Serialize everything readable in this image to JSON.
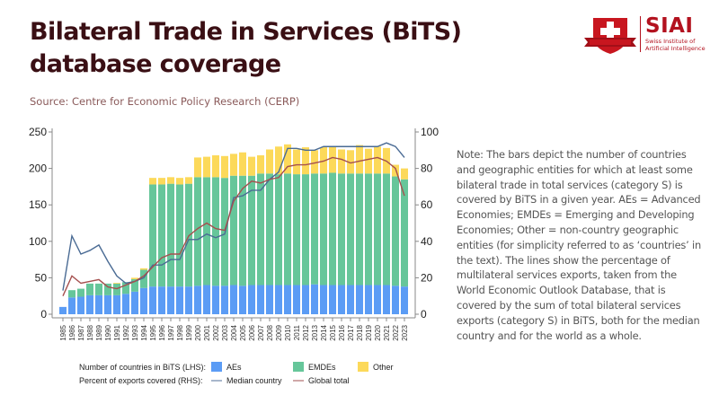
{
  "header": {
    "title": "Bilateral Trade in Services (BiTS) database coverage",
    "source": "Source: Centre for Economic Policy Research (CERP)"
  },
  "logo": {
    "name": "SIAI",
    "subtitle_line1": "Swiss Institute of",
    "subtitle_line2": "Artificial Intelligence",
    "brand_color": "#b3121f"
  },
  "note": "Note: The bars depict the number of countries and geographic entities for which at least some bilateral trade in total services (category S) is covered by BiTS in a given year. AEs = Advanced Economies; EMDEs = Emerging and Developing Economies; Other = non-country geographic entities (for simplicity referred to as ‘countries’ in the text). The lines show the percentage of multilateral services exports, taken from the World Economic Outlook Database, that is covered by the sum of total bilateral services exports (category S) in BiTS, both for the median country and for the world as a whole.",
  "chart_data": {
    "type": "bar",
    "stacked": true,
    "title": "",
    "xlabel": "",
    "ylabel_left": "Number of countries in BiTS (LHS)",
    "ylabel_right": "Percent of exports covered (RHS)",
    "ylim_left": [
      0,
      250
    ],
    "ylim_right": [
      0,
      100
    ],
    "yticks_left": [
      0,
      50,
      100,
      150,
      200,
      250
    ],
    "yticks_right": [
      0,
      20,
      40,
      60,
      80,
      100
    ],
    "grid": false,
    "categories": [
      "1985",
      "1986",
      "1987",
      "1988",
      "1989",
      "1990",
      "1991",
      "1992",
      "1993",
      "1994",
      "1995",
      "1996",
      "1997",
      "1998",
      "1999",
      "2000",
      "2001",
      "2002",
      "2003",
      "2004",
      "2005",
      "2006",
      "2007",
      "2008",
      "2009",
      "2010",
      "2011",
      "2012",
      "2013",
      "2014",
      "2015",
      "2016",
      "2017",
      "2018",
      "2019",
      "2020",
      "2021",
      "2022",
      "2023"
    ],
    "series": [
      {
        "name": "AEs",
        "kind": "bar",
        "axis": "left",
        "color": "#5b9cf5",
        "values": [
          10,
          23,
          24,
          26,
          26,
          26,
          26,
          28,
          31,
          36,
          38,
          38,
          38,
          38,
          38,
          39,
          40,
          39,
          39,
          40,
          39,
          40,
          40,
          40,
          40,
          40,
          40,
          40,
          41,
          40,
          40,
          40,
          40,
          40,
          40,
          40,
          40,
          39,
          38
        ]
      },
      {
        "name": "EMDEs",
        "kind": "bar",
        "axis": "left",
        "color": "#66c69a",
        "values": [
          0,
          10,
          11,
          16,
          16,
          16,
          16,
          16,
          17,
          25,
          140,
          140,
          141,
          140,
          141,
          149,
          148,
          149,
          148,
          150,
          151,
          150,
          153,
          153,
          152,
          153,
          152,
          152,
          152,
          153,
          154,
          153,
          153,
          153,
          153,
          153,
          153,
          150,
          147
        ]
      },
      {
        "name": "Other",
        "kind": "bar",
        "axis": "left",
        "color": "#fcd95a",
        "values": [
          0,
          0,
          0,
          0,
          0,
          0,
          1,
          0,
          2,
          2,
          9,
          9,
          9,
          9,
          9,
          27,
          28,
          30,
          30,
          30,
          32,
          26,
          25,
          33,
          38,
          40,
          34,
          37,
          32,
          36,
          36,
          33,
          32,
          39,
          34,
          37,
          35,
          16,
          15
        ]
      },
      {
        "name": "Median country",
        "kind": "line",
        "axis": "right",
        "color": "#4a6b94",
        "values": [
          13,
          43,
          33,
          35,
          38,
          29,
          21,
          17,
          18,
          20,
          27,
          27,
          30,
          30,
          41,
          41,
          44,
          42,
          44,
          64,
          65,
          68,
          68,
          74,
          78,
          91,
          91,
          90,
          90,
          92,
          92,
          92,
          92,
          92,
          92,
          92,
          94,
          92,
          86
        ]
      },
      {
        "name": "Global total",
        "kind": "line",
        "axis": "right",
        "color": "#a5504f",
        "values": [
          10,
          21,
          17,
          18,
          19,
          15,
          14,
          16,
          18,
          21,
          26,
          31,
          33,
          33,
          43,
          47,
          50,
          47,
          46,
          62,
          69,
          73,
          72,
          74,
          75,
          81,
          82,
          82,
          83,
          84,
          86,
          85,
          83,
          84,
          85,
          86,
          84,
          80,
          65
        ]
      }
    ],
    "legend": {
      "placement": "bottom",
      "row1_label": "Number of countries in BiTS (LHS):",
      "row2_label": "Percent of exports covered (RHS):",
      "items": [
        "AEs",
        "EMDEs",
        "Other",
        "Median country",
        "Global total"
      ]
    }
  }
}
